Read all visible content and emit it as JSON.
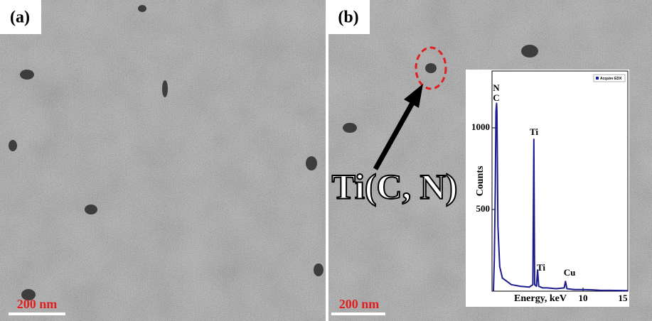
{
  "panels": [
    {
      "label": "(a)",
      "scale_bar": "200 nm"
    },
    {
      "label": "(b)",
      "scale_bar": "200 nm",
      "annotation": "Ti(C, N)"
    }
  ],
  "inset": {
    "type": "line",
    "x_label": "Energy, keV",
    "y_label": "Counts",
    "peak_labels": [
      "N",
      "C",
      "Ti",
      "Ti",
      "Cu"
    ],
    "series": [
      {
        "name": "Acquire EDX",
        "color": "#1c1c8f",
        "x": [
          0,
          0.1,
          0.2,
          0.28,
          0.35,
          0.39,
          0.5,
          0.7,
          1,
          2,
          3,
          4,
          4.4,
          4.51,
          4.6,
          4.8,
          4.93,
          5.05,
          5.5,
          6,
          7,
          7.9,
          8.04,
          8.2,
          9,
          10,
          11,
          12,
          13,
          15
        ],
        "values": [
          0,
          200,
          600,
          1100,
          1150,
          1100,
          400,
          150,
          80,
          40,
          30,
          25,
          40,
          930,
          40,
          30,
          130,
          30,
          20,
          20,
          15,
          20,
          60,
          15,
          10,
          10,
          8,
          5,
          5,
          3
        ]
      }
    ],
    "xlim": [
      0,
      15
    ],
    "ylim": [
      0,
      1300
    ],
    "xticks": [
      10,
      15
    ],
    "yticks": [
      500,
      1000
    ]
  }
}
